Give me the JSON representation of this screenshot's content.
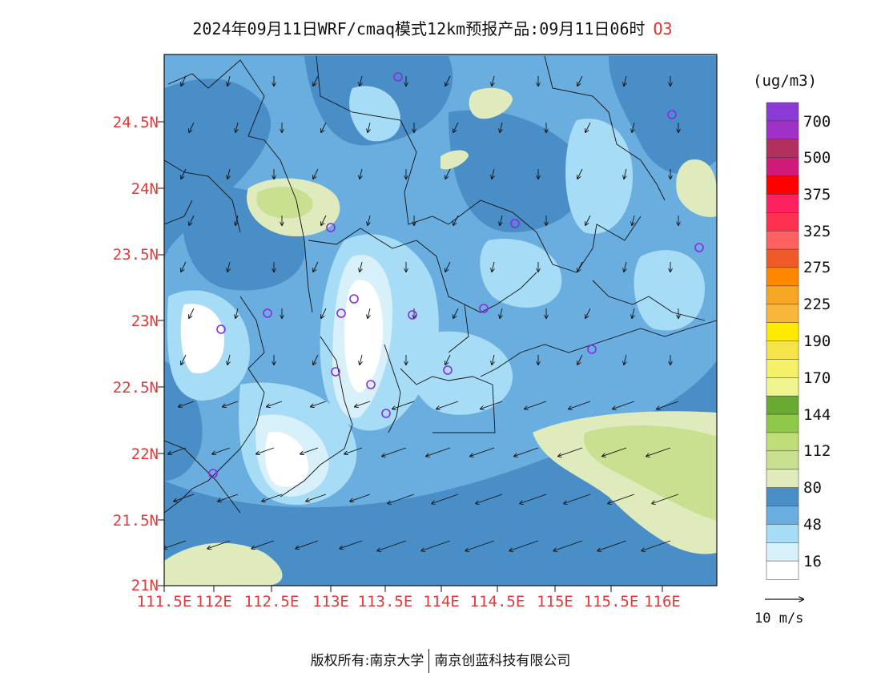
{
  "title": "2024年09月11日WRF/cmaq模式12km预报产品:09月11日06时",
  "pollutant": "O3",
  "unit_label": "(ug/m3)",
  "vector_label": "10 m/s",
  "copyright": {
    "prefix": "版权所有:",
    "org1": "南京大学",
    "org2": "南京创蓝科技有限公司"
  },
  "lat_ticks": [
    "24.5N",
    "24N",
    "23.5N",
    "23N",
    "22.5N",
    "22N",
    "21.5N",
    "21N"
  ],
  "lon_ticks": [
    "111.5E",
    "112E",
    "112.5E",
    "113E",
    "113.5E",
    "114E",
    "114.5E",
    "115E",
    "115.5E",
    "116E"
  ],
  "colorbar": {
    "labels": [
      "700",
      "500",
      "375",
      "325",
      "275",
      "225",
      "190",
      "170",
      "144",
      "112",
      "80",
      "48",
      "16"
    ],
    "colors_top_to_bottom": [
      "#8c3ad6",
      "#a030c8",
      "#b03060",
      "#d01a7a",
      "#ff0000",
      "#ff2060",
      "#ff3050",
      "#ff6060",
      "#f05a2a",
      "#ff8800",
      "#f5a623",
      "#f7b73a",
      "#ffea00",
      "#f5e34a",
      "#f5f06a",
      "#f0f590",
      "#6aaa32",
      "#90c84a",
      "#c0de78",
      "#c8e090",
      "#e0ebbd",
      "#4a8ec8",
      "#6aaee0",
      "#a6dcf5",
      "#d8f0fa",
      "#ffffff"
    ]
  },
  "stations_count": 17,
  "colors": {
    "water_deep": "#4a8ec8",
    "water_mid": "#6aaee0",
    "light_blue": "#a6dcf5",
    "pale_blue": "#d8f0fa",
    "yellow_green": "#e0ebbd",
    "green": "#c8e090",
    "station": "#8a2be2",
    "axis_text": "#e03a3a"
  }
}
